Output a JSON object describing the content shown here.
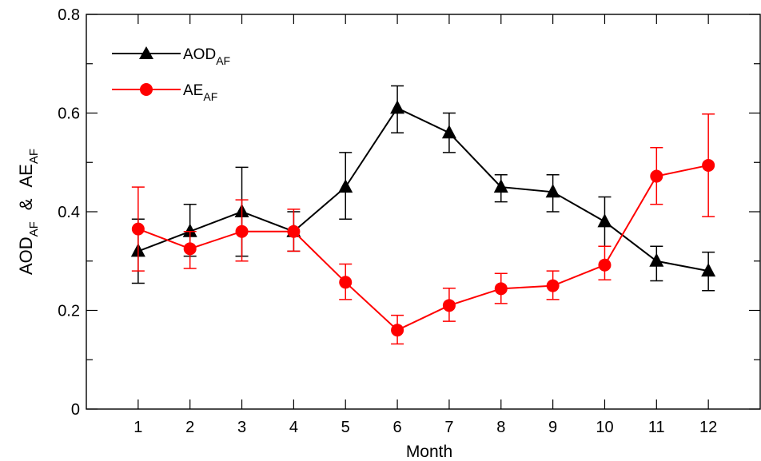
{
  "chart_data": {
    "type": "line",
    "xlabel": "Month",
    "ylabel": {
      "part1": "AOD",
      "part1_sub": "AF",
      "amp": "&",
      "part2": "AE",
      "part2_sub": "AF"
    },
    "categories": [
      1,
      2,
      3,
      4,
      5,
      6,
      7,
      8,
      9,
      10,
      11,
      12
    ],
    "xlim": [
      0,
      13
    ],
    "ylim": [
      0,
      0.8
    ],
    "yticks": [
      "0",
      "0.2",
      "0.4",
      "0.6",
      "0.8"
    ],
    "grid": false,
    "legend_placement": "top-left",
    "series": [
      {
        "name": "AOD",
        "name_sub": "AF",
        "color": "#000000",
        "marker": "triangle",
        "values": [
          0.32,
          0.36,
          0.4,
          0.36,
          0.45,
          0.61,
          0.56,
          0.45,
          0.44,
          0.38,
          0.3,
          0.28
        ],
        "err_low": [
          0.255,
          0.31,
          0.31,
          0.32,
          0.385,
          0.56,
          0.52,
          0.42,
          0.4,
          0.33,
          0.26,
          0.24
        ],
        "err_high": [
          0.385,
          0.415,
          0.49,
          0.4,
          0.52,
          0.655,
          0.6,
          0.475,
          0.475,
          0.43,
          0.33,
          0.318
        ]
      },
      {
        "name": "AE",
        "name_sub": "AF",
        "color": "#ff0000",
        "marker": "circle",
        "values": [
          0.365,
          0.325,
          0.36,
          0.36,
          0.257,
          0.16,
          0.21,
          0.244,
          0.25,
          0.292,
          0.472,
          0.494
        ],
        "err_low": [
          0.28,
          0.285,
          0.3,
          0.32,
          0.222,
          0.132,
          0.178,
          0.214,
          0.222,
          0.262,
          0.415,
          0.39
        ],
        "err_high": [
          0.45,
          0.36,
          0.424,
          0.405,
          0.294,
          0.19,
          0.245,
          0.275,
          0.28,
          0.33,
          0.53,
          0.598
        ]
      }
    ]
  }
}
